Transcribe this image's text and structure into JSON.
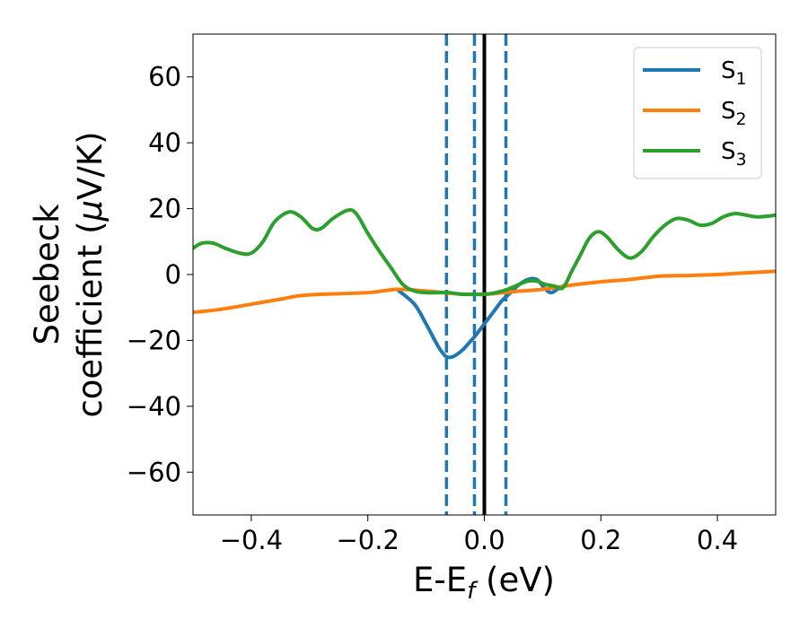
{
  "chart_data": {
    "type": "line",
    "xlabel": "E-E",
    "xlabel_sub": "f",
    "xlabel_unit": " (eV)",
    "ylabel_line1": "Seebeck",
    "ylabel_line2_prefix": "coefficient  (",
    "ylabel_mu": "μ",
    "ylabel_line2_suffix": "V/K)",
    "xlim": [
      -0.5,
      0.5
    ],
    "ylim": [
      -73,
      73
    ],
    "xticks": [
      -0.4,
      -0.2,
      0.0,
      0.2,
      0.4
    ],
    "xtick_labels": [
      "−0.4",
      "−0.2",
      "0.0",
      "0.2",
      "0.4"
    ],
    "yticks": [
      -60,
      -40,
      -20,
      0,
      20,
      40,
      60
    ],
    "ytick_labels": [
      "−60",
      "−40",
      "−20",
      "0",
      "20",
      "40",
      "60"
    ],
    "legend_position": "top-right",
    "colors": {
      "S1": "#1f77b4",
      "S2": "#ff7f0e",
      "S3": "#2ca02c",
      "solid_vline": "#000000"
    },
    "series": [
      {
        "name": "S1",
        "name_base": "S",
        "name_sub": "1",
        "x": [
          -0.15,
          -0.12,
          -0.1,
          -0.085,
          -0.075,
          -0.065,
          -0.055,
          -0.045,
          -0.035,
          -0.025,
          -0.015,
          0.0,
          0.015,
          0.03,
          0.045,
          0.06,
          0.075,
          0.09,
          0.105,
          0.115,
          0.125,
          0.135
        ],
        "y": [
          -4.5,
          -9,
          -15,
          -20,
          -23,
          -25,
          -25,
          -24,
          -22.5,
          -20.5,
          -18.5,
          -15,
          -11.5,
          -8,
          -5.5,
          -3,
          -1.5,
          -1.5,
          -4.5,
          -5.5,
          -4.5,
          -3.5
        ]
      },
      {
        "name": "S2",
        "name_base": "S",
        "name_sub": "2",
        "x": [
          -0.5,
          -0.45,
          -0.4,
          -0.35,
          -0.32,
          -0.28,
          -0.2,
          -0.15,
          -0.1,
          -0.05,
          0.0,
          0.05,
          0.1,
          0.15,
          0.2,
          0.25,
          0.3,
          0.35,
          0.4,
          0.45,
          0.5
        ],
        "y": [
          -11.5,
          -10.5,
          -9,
          -7.5,
          -6.5,
          -6,
          -5.5,
          -4.5,
          -5,
          -5.8,
          -6,
          -5.2,
          -4.5,
          -3.2,
          -2.2,
          -1.5,
          -0.5,
          -0.3,
          0,
          0.5,
          1
        ]
      },
      {
        "name": "S3",
        "name_base": "S",
        "name_sub": "3",
        "x": [
          -0.5,
          -0.485,
          -0.465,
          -0.445,
          -0.42,
          -0.4,
          -0.38,
          -0.36,
          -0.335,
          -0.315,
          -0.295,
          -0.28,
          -0.26,
          -0.235,
          -0.22,
          -0.2,
          -0.18,
          -0.16,
          -0.14,
          -0.12,
          -0.1,
          -0.08,
          -0.06,
          -0.04,
          -0.02,
          0.0,
          0.02,
          0.04,
          0.06,
          0.075,
          0.09,
          0.105,
          0.12,
          0.135,
          0.15,
          0.165,
          0.18,
          0.195,
          0.21,
          0.23,
          0.25,
          0.27,
          0.29,
          0.31,
          0.33,
          0.35,
          0.37,
          0.39,
          0.41,
          0.43,
          0.45,
          0.47,
          0.5
        ],
        "y": [
          8,
          9.5,
          9.5,
          8,
          6.5,
          6.5,
          10,
          16,
          19,
          17.5,
          14,
          14,
          17,
          19.5,
          18.5,
          12.5,
          7,
          2,
          -3,
          -5,
          -5.5,
          -5.5,
          -5.5,
          -6,
          -6,
          -6,
          -5.5,
          -4.5,
          -3,
          -2,
          -2,
          -3,
          -3.5,
          -4,
          1,
          6,
          11,
          13,
          11.5,
          7.5,
          5,
          7,
          11.5,
          15,
          17,
          16.5,
          15,
          15.5,
          17.5,
          18.5,
          18,
          17.5,
          18
        ]
      }
    ],
    "vlines": [
      {
        "x": -0.065,
        "style": "dashed",
        "color": "#1f77b4"
      },
      {
        "x": -0.017,
        "style": "dashed",
        "color": "#1f77b4"
      },
      {
        "x": 0.0,
        "style": "solid",
        "color": "#000000"
      },
      {
        "x": 0.037,
        "style": "dashed",
        "color": "#1f77b4"
      }
    ]
  }
}
